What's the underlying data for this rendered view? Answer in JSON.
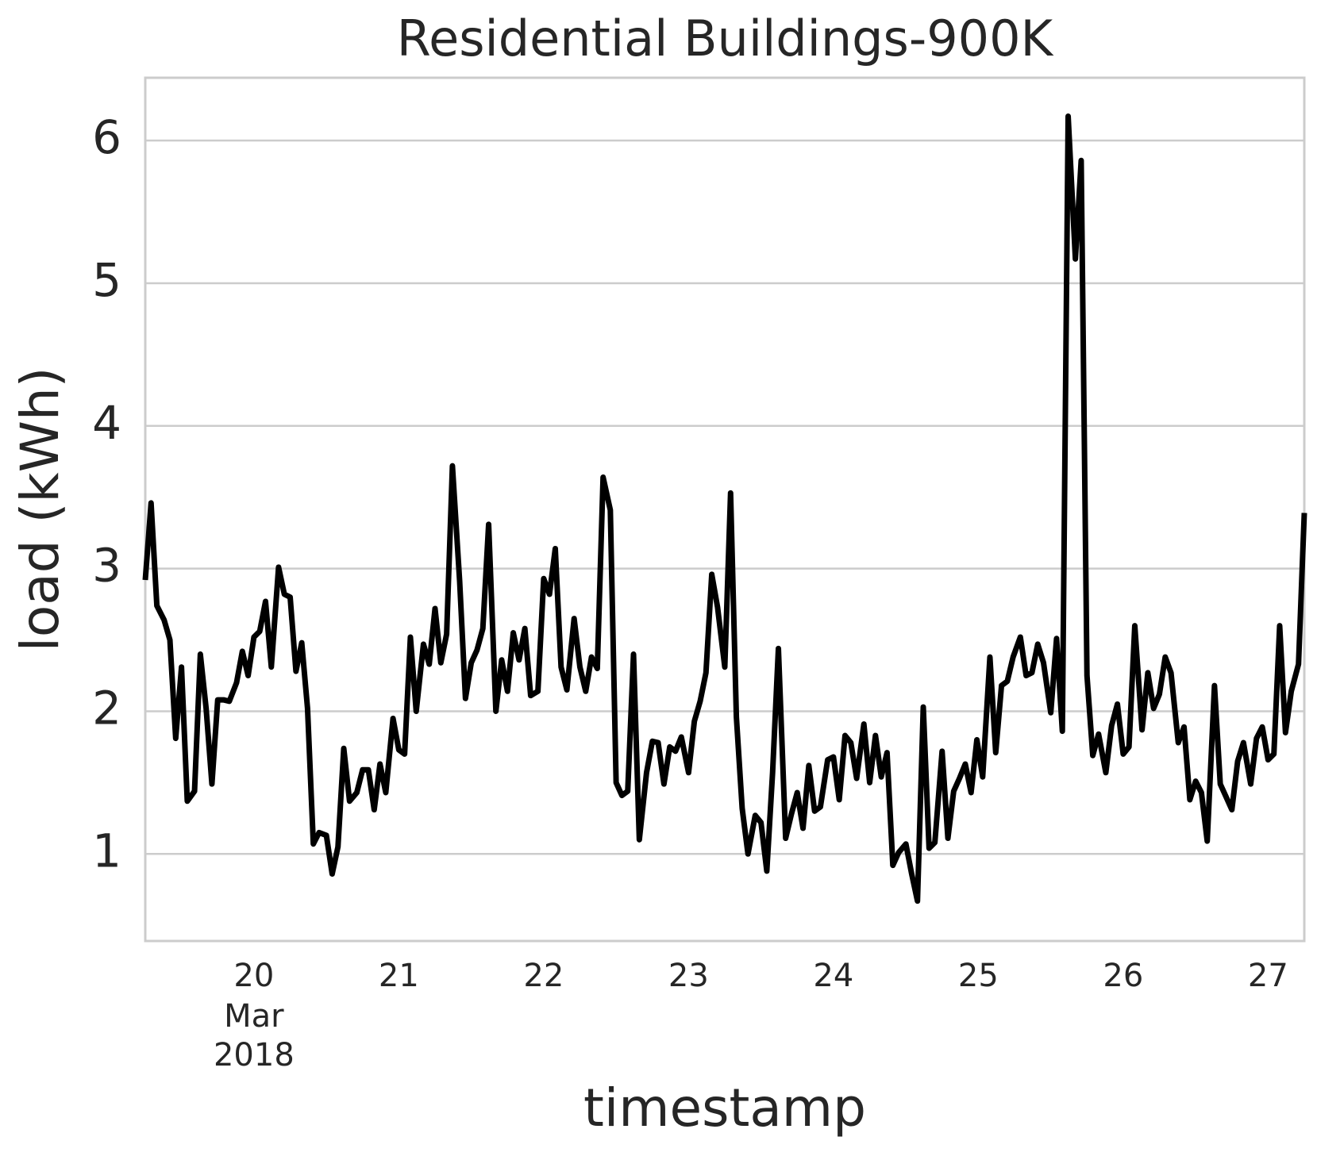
{
  "chart_data": {
    "type": "line",
    "title": "Residential Buildings-900K",
    "xlabel": "timestamp",
    "ylabel": "load (kWh)",
    "x": [
      19.25,
      19.29,
      19.33,
      19.38,
      19.42,
      19.46,
      19.5,
      19.54,
      19.59,
      19.63,
      19.67,
      19.71,
      19.75,
      19.79,
      19.83,
      19.88,
      19.92,
      19.96,
      20.0,
      20.04,
      20.08,
      20.12,
      20.17,
      20.21,
      20.25,
      20.29,
      20.33,
      20.37,
      20.41,
      20.45,
      20.5,
      20.54,
      20.58,
      20.62,
      20.66,
      20.71,
      20.75,
      20.79,
      20.83,
      20.87,
      20.91,
      20.96,
      21.0,
      21.04,
      21.08,
      21.12,
      21.17,
      21.21,
      21.25,
      21.29,
      21.33,
      21.37,
      21.42,
      21.46,
      21.5,
      21.54,
      21.58,
      21.62,
      21.67,
      21.71,
      21.75,
      21.79,
      21.83,
      21.87,
      21.91,
      21.96,
      22.0,
      22.04,
      22.08,
      22.12,
      22.16,
      22.21,
      22.25,
      22.29,
      22.33,
      22.37,
      22.41,
      22.46,
      22.5,
      22.54,
      22.58,
      22.62,
      22.66,
      22.71,
      22.75,
      22.79,
      22.83,
      22.87,
      22.91,
      22.95,
      23.0,
      23.04,
      23.08,
      23.12,
      23.16,
      23.2,
      23.25,
      23.29,
      23.33,
      23.37,
      23.41,
      23.46,
      23.5,
      23.54,
      23.58,
      23.62,
      23.67,
      23.71,
      23.75,
      23.79,
      23.83,
      23.87,
      23.91,
      23.96,
      24.0,
      24.04,
      24.08,
      24.12,
      24.16,
      24.21,
      24.25,
      24.29,
      24.33,
      24.37,
      24.41,
      24.45,
      24.5,
      24.54,
      24.58,
      24.62,
      24.66,
      24.7,
      24.75,
      24.79,
      24.83,
      24.87,
      24.91,
      24.95,
      24.99,
      25.03,
      25.08,
      25.12,
      25.16,
      25.2,
      25.24,
      25.29,
      25.33,
      25.37,
      25.41,
      25.45,
      25.5,
      25.54,
      25.58,
      25.62,
      25.67,
      25.71,
      25.75,
      25.79,
      25.83,
      25.88,
      25.92,
      25.96,
      26.0,
      26.04,
      26.08,
      26.13,
      26.17,
      26.21,
      26.25,
      26.29,
      26.33,
      26.38,
      26.42,
      26.46,
      26.5,
      26.54,
      26.58,
      26.63,
      26.67,
      26.71,
      26.75,
      26.79,
      26.83,
      26.88,
      26.92,
      26.96,
      27.0,
      27.04,
      27.08,
      27.12,
      27.16,
      27.21,
      27.25
    ],
    "series": [
      {
        "name": "load",
        "color": "#000000",
        "values": [
          2.92,
          3.46,
          2.74,
          2.64,
          2.5,
          1.81,
          2.31,
          1.37,
          1.44,
          2.4,
          2.02,
          1.49,
          2.08,
          2.08,
          2.07,
          2.2,
          2.42,
          2.25,
          2.52,
          2.56,
          2.77,
          2.31,
          3.01,
          2.82,
          2.8,
          2.28,
          2.48,
          2.02,
          1.07,
          1.15,
          1.13,
          0.86,
          1.05,
          1.74,
          1.37,
          1.43,
          1.59,
          1.59,
          1.31,
          1.63,
          1.43,
          1.95,
          1.73,
          1.7,
          2.52,
          2.0,
          2.47,
          2.33,
          2.72,
          2.34,
          2.54,
          3.72,
          2.91,
          2.09,
          2.34,
          2.43,
          2.58,
          3.31,
          2.0,
          2.36,
          2.14,
          2.55,
          2.36,
          2.58,
          2.11,
          2.14,
          2.93,
          2.82,
          3.14,
          2.31,
          2.15,
          2.65,
          2.31,
          2.14,
          2.38,
          2.3,
          3.64,
          3.41,
          1.5,
          1.41,
          1.44,
          2.4,
          1.1,
          1.57,
          1.79,
          1.78,
          1.49,
          1.75,
          1.72,
          1.82,
          1.57,
          1.93,
          2.07,
          2.27,
          2.96,
          2.73,
          2.31,
          3.53,
          1.96,
          1.32,
          1.0,
          1.27,
          1.22,
          0.88,
          1.57,
          2.44,
          1.11,
          1.28,
          1.43,
          1.18,
          1.62,
          1.3,
          1.33,
          1.66,
          1.68,
          1.38,
          1.83,
          1.78,
          1.53,
          1.91,
          1.5,
          1.83,
          1.54,
          1.71,
          0.92,
          1.01,
          1.07,
          0.86,
          0.67,
          2.03,
          1.04,
          1.08,
          1.72,
          1.11,
          1.44,
          1.53,
          1.63,
          1.43,
          1.8,
          1.54,
          2.38,
          1.71,
          2.18,
          2.21,
          2.38,
          2.52,
          2.25,
          2.27,
          2.47,
          2.34,
          1.99,
          2.51,
          1.86,
          6.17,
          5.17,
          5.86,
          2.25,
          1.69,
          1.84,
          1.57,
          1.9,
          2.05,
          1.7,
          1.75,
          2.6,
          1.87,
          2.27,
          2.02,
          2.12,
          2.38,
          2.27,
          1.78,
          1.89,
          1.38,
          1.51,
          1.43,
          1.09,
          2.18,
          1.49,
          1.4,
          1.31,
          1.65,
          1.78,
          1.49,
          1.81,
          1.89,
          1.66,
          1.7,
          2.6,
          1.85,
          2.14,
          2.33,
          3.39
        ]
      }
    ],
    "xlim": [
      19.25,
      27.25
    ],
    "xticks": [
      20,
      21,
      22,
      23,
      24,
      25,
      26,
      27
    ],
    "x_tick_month": "Mar",
    "x_tick_year": "2018",
    "ylim": [
      0.39,
      6.44
    ],
    "yticks": [
      1,
      2,
      3,
      4,
      5,
      6
    ],
    "grid": true
  }
}
